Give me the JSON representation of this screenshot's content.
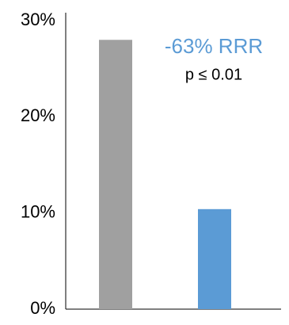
{
  "chart_data": {
    "type": "bar",
    "categories": [
      null,
      null
    ],
    "values": [
      28,
      10.4
    ],
    "colors": [
      "#a0a0a0",
      "#5b9bd5"
    ],
    "ylim": [
      0,
      30
    ],
    "yticks": [
      {
        "value": 0,
        "label": "0%"
      },
      {
        "value": 10,
        "label": "10%"
      },
      {
        "value": 20,
        "label": "20%"
      },
      {
        "value": 30,
        "label": "30%"
      }
    ],
    "grid": false,
    "annotations": [
      {
        "text": "-63% RRR",
        "color": "#5b9bd5"
      },
      {
        "text": "p ≤ 0.01",
        "color": "#000000"
      }
    ]
  }
}
